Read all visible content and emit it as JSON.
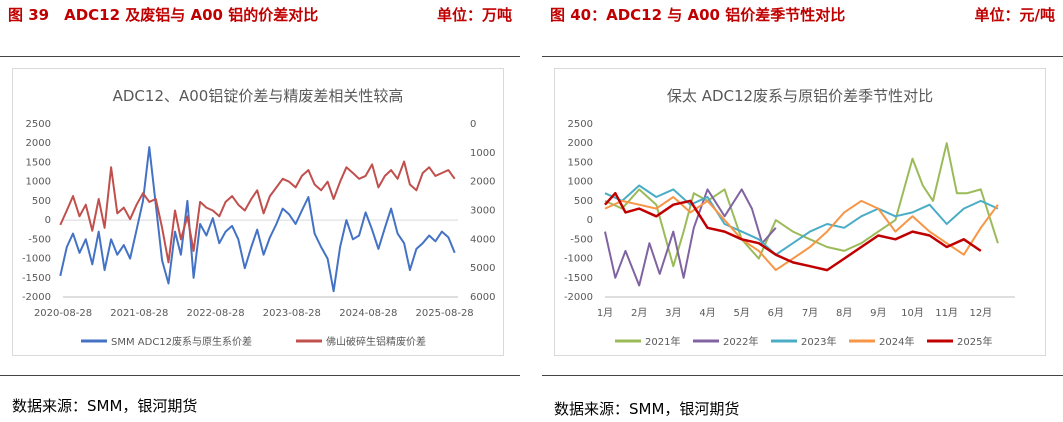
{
  "left_panel": {
    "figure_title": "图 39　ADC12 及废铝与 A00 铝的价差对比",
    "unit": "单位：万吨",
    "source": "数据来源：SMM，银河期货"
  },
  "right_panel": {
    "figure_title": "图 40：ADC12 与 A00 铝价差季节性对比",
    "unit": "单位：元/吨",
    "source": "数据来源：SMM，银河期货"
  },
  "chart_data": [
    {
      "type": "line",
      "title": "ADC12、A00铝锭价差与精废差相关性较高",
      "x_tick_labels": [
        "2020-08-28",
        "2021-08-28",
        "2022-08-28",
        "2023-08-28",
        "2024-08-28",
        "2025-08-28"
      ],
      "x_range": [
        "2020-08-28",
        "2025-10-31"
      ],
      "y_left": {
        "min": -2000,
        "max": 2500,
        "step": 500
      },
      "y_right": {
        "min": 0,
        "max": 6000,
        "step": 1000,
        "reversed": true
      },
      "legend_position": "bottom",
      "series": [
        {
          "name": "SMM ADC12废系与原生系价差",
          "color": "#4472c4",
          "axis": "left",
          "x": [
            "2020-08",
            "2020-09",
            "2020-10",
            "2020-11",
            "2020-12",
            "2021-01",
            "2021-02",
            "2021-03",
            "2021-04",
            "2021-05",
            "2021-06",
            "2021-07",
            "2021-08",
            "2021-09",
            "2021-10",
            "2021-11",
            "2021-12",
            "2022-01",
            "2022-02",
            "2022-03",
            "2022-04",
            "2022-05",
            "2022-06",
            "2022-07",
            "2022-08",
            "2022-09",
            "2022-10",
            "2022-11",
            "2022-12",
            "2023-01",
            "2023-02",
            "2023-03",
            "2023-04",
            "2023-05",
            "2023-06",
            "2023-07",
            "2023-08",
            "2023-09",
            "2023-10",
            "2023-11",
            "2023-12",
            "2024-01",
            "2024-02",
            "2024-03",
            "2024-04",
            "2024-05",
            "2024-06",
            "2024-07",
            "2024-08",
            "2024-09",
            "2024-10",
            "2024-11",
            "2024-12",
            "2025-01",
            "2025-02",
            "2025-03",
            "2025-04",
            "2025-05",
            "2025-06",
            "2025-07",
            "2025-08",
            "2025-09",
            "2025-10"
          ],
          "values": [
            -1450,
            -700,
            -350,
            -850,
            -500,
            -1150,
            -300,
            -1300,
            -500,
            -900,
            -650,
            -1000,
            -250,
            500,
            1900,
            400,
            -1050,
            -1650,
            -300,
            -900,
            500,
            -1500,
            -100,
            -400,
            50,
            -600,
            -300,
            -150,
            -500,
            -1250,
            -700,
            -250,
            -900,
            -450,
            -100,
            300,
            150,
            -100,
            250,
            600,
            -350,
            -700,
            -1000,
            -1850,
            -700,
            0,
            -500,
            -400,
            200,
            -250,
            -750,
            -200,
            300,
            -350,
            -600,
            -1300,
            -750,
            -600,
            -400,
            -550,
            -300,
            -450,
            -850
          ]
        },
        {
          "name": "佛山破碎生铝精废价差",
          "color": "#c0504d",
          "axis": "right",
          "x": [
            "2020-08",
            "2020-09",
            "2020-10",
            "2020-11",
            "2020-12",
            "2021-01",
            "2021-02",
            "2021-03",
            "2021-04",
            "2021-05",
            "2021-06",
            "2021-07",
            "2021-08",
            "2021-09",
            "2021-10",
            "2021-11",
            "2021-12",
            "2022-01",
            "2022-02",
            "2022-03",
            "2022-04",
            "2022-05",
            "2022-06",
            "2022-07",
            "2022-08",
            "2022-09",
            "2022-10",
            "2022-11",
            "2022-12",
            "2023-01",
            "2023-02",
            "2023-03",
            "2023-04",
            "2023-05",
            "2023-06",
            "2023-07",
            "2023-08",
            "2023-09",
            "2023-10",
            "2023-11",
            "2023-12",
            "2024-01",
            "2024-02",
            "2024-03",
            "2024-04",
            "2024-05",
            "2024-06",
            "2024-07",
            "2024-08",
            "2024-09",
            "2024-10",
            "2024-11",
            "2024-12",
            "2025-01",
            "2025-02",
            "2025-03",
            "2025-04",
            "2025-05",
            "2025-06",
            "2025-07",
            "2025-08",
            "2025-09",
            "2025-10"
          ],
          "values": [
            3500,
            3000,
            2500,
            3200,
            2800,
            3700,
            2600,
            3600,
            1500,
            3100,
            2900,
            3300,
            2800,
            2400,
            2700,
            2600,
            3600,
            4800,
            3000,
            4000,
            3200,
            4400,
            2700,
            2900,
            3000,
            3200,
            2700,
            2500,
            2800,
            3000,
            2600,
            2300,
            3100,
            2500,
            2200,
            1900,
            2000,
            2200,
            1800,
            1600,
            2100,
            2300,
            2000,
            2600,
            2000,
            1500,
            1700,
            1900,
            1800,
            1400,
            2200,
            1800,
            1600,
            1900,
            1300,
            2100,
            2300,
            1700,
            1500,
            1800,
            1700,
            1600,
            1900
          ]
        }
      ]
    },
    {
      "type": "line",
      "title": "保太 ADC12废系与原铝价差季节性对比",
      "categories": [
        "1月",
        "2月",
        "3月",
        "4月",
        "5月",
        "6月",
        "7月",
        "8月",
        "9月",
        "10月",
        "11月",
        "12月"
      ],
      "y": {
        "min": -2000,
        "max": 2500,
        "step": 500
      },
      "legend_position": "bottom",
      "series": [
        {
          "name": "2021年",
          "color": "#9bbb59",
          "x": [
            1,
            1.5,
            2,
            2.5,
            3,
            3.3,
            3.6,
            4,
            4.5,
            5,
            5.5,
            6,
            6.5,
            7,
            7.5,
            8,
            8.5,
            9,
            9.5,
            10,
            10.3,
            10.6,
            11,
            11.3,
            11.6,
            12,
            12.5
          ],
          "values": [
            500,
            300,
            800,
            400,
            -1200,
            -300,
            700,
            500,
            800,
            -500,
            -1000,
            0,
            -300,
            -500,
            -700,
            -800,
            -600,
            -300,
            0,
            1600,
            900,
            500,
            2000,
            700,
            700,
            800,
            -600
          ]
        },
        {
          "name": "2022年",
          "color": "#8064a2",
          "x": [
            1,
            1.3,
            1.6,
            2,
            2.3,
            2.6,
            3,
            3.3,
            3.6,
            4,
            4.5,
            5,
            5.3,
            5.6,
            6
          ],
          "values": [
            -300,
            -1500,
            -800,
            -1700,
            -600,
            -1400,
            -300,
            -1500,
            -200,
            800,
            100,
            800,
            300,
            -600,
            -200
          ]
        },
        {
          "name": "2023年",
          "color": "#4bacc6",
          "x": [
            1,
            1.5,
            2,
            2.5,
            3,
            3.5,
            4,
            4.5,
            5,
            5.5,
            6,
            6.5,
            7,
            7.5,
            8,
            8.5,
            9,
            9.5,
            10,
            10.5,
            11,
            11.5,
            12,
            12.5
          ],
          "values": [
            700,
            500,
            900,
            600,
            800,
            400,
            600,
            -100,
            -300,
            -500,
            -900,
            -600,
            -300,
            -100,
            -200,
            100,
            300,
            100,
            200,
            400,
            -100,
            300,
            500,
            300
          ]
        },
        {
          "name": "2024年",
          "color": "#f79646",
          "x": [
            1,
            1.5,
            2,
            2.5,
            3,
            3.5,
            4,
            4.5,
            5,
            5.5,
            6,
            6.5,
            7,
            7.5,
            8,
            8.5,
            9,
            9.5,
            10,
            10.5,
            11,
            11.5,
            12,
            12.5
          ],
          "values": [
            300,
            500,
            400,
            300,
            600,
            200,
            500,
            0,
            -500,
            -800,
            -1300,
            -1000,
            -700,
            -300,
            200,
            500,
            300,
            -300,
            100,
            -300,
            -600,
            -900,
            -200,
            400
          ]
        },
        {
          "name": "2025年",
          "color": "#c00000",
          "x": [
            1,
            1.3,
            1.6,
            2,
            2.5,
            3,
            3.5,
            4,
            4.5,
            5,
            5.5,
            6,
            6.5,
            7,
            7.5,
            8,
            8.5,
            9,
            9.5,
            10,
            10.5,
            11,
            11.5,
            12
          ],
          "values": [
            400,
            700,
            200,
            300,
            100,
            400,
            500,
            -200,
            -300,
            -500,
            -600,
            -900,
            -1100,
            -1200,
            -1300,
            -1000,
            -700,
            -400,
            -500,
            -300,
            -400,
            -700,
            -500,
            -800
          ]
        }
      ]
    }
  ]
}
